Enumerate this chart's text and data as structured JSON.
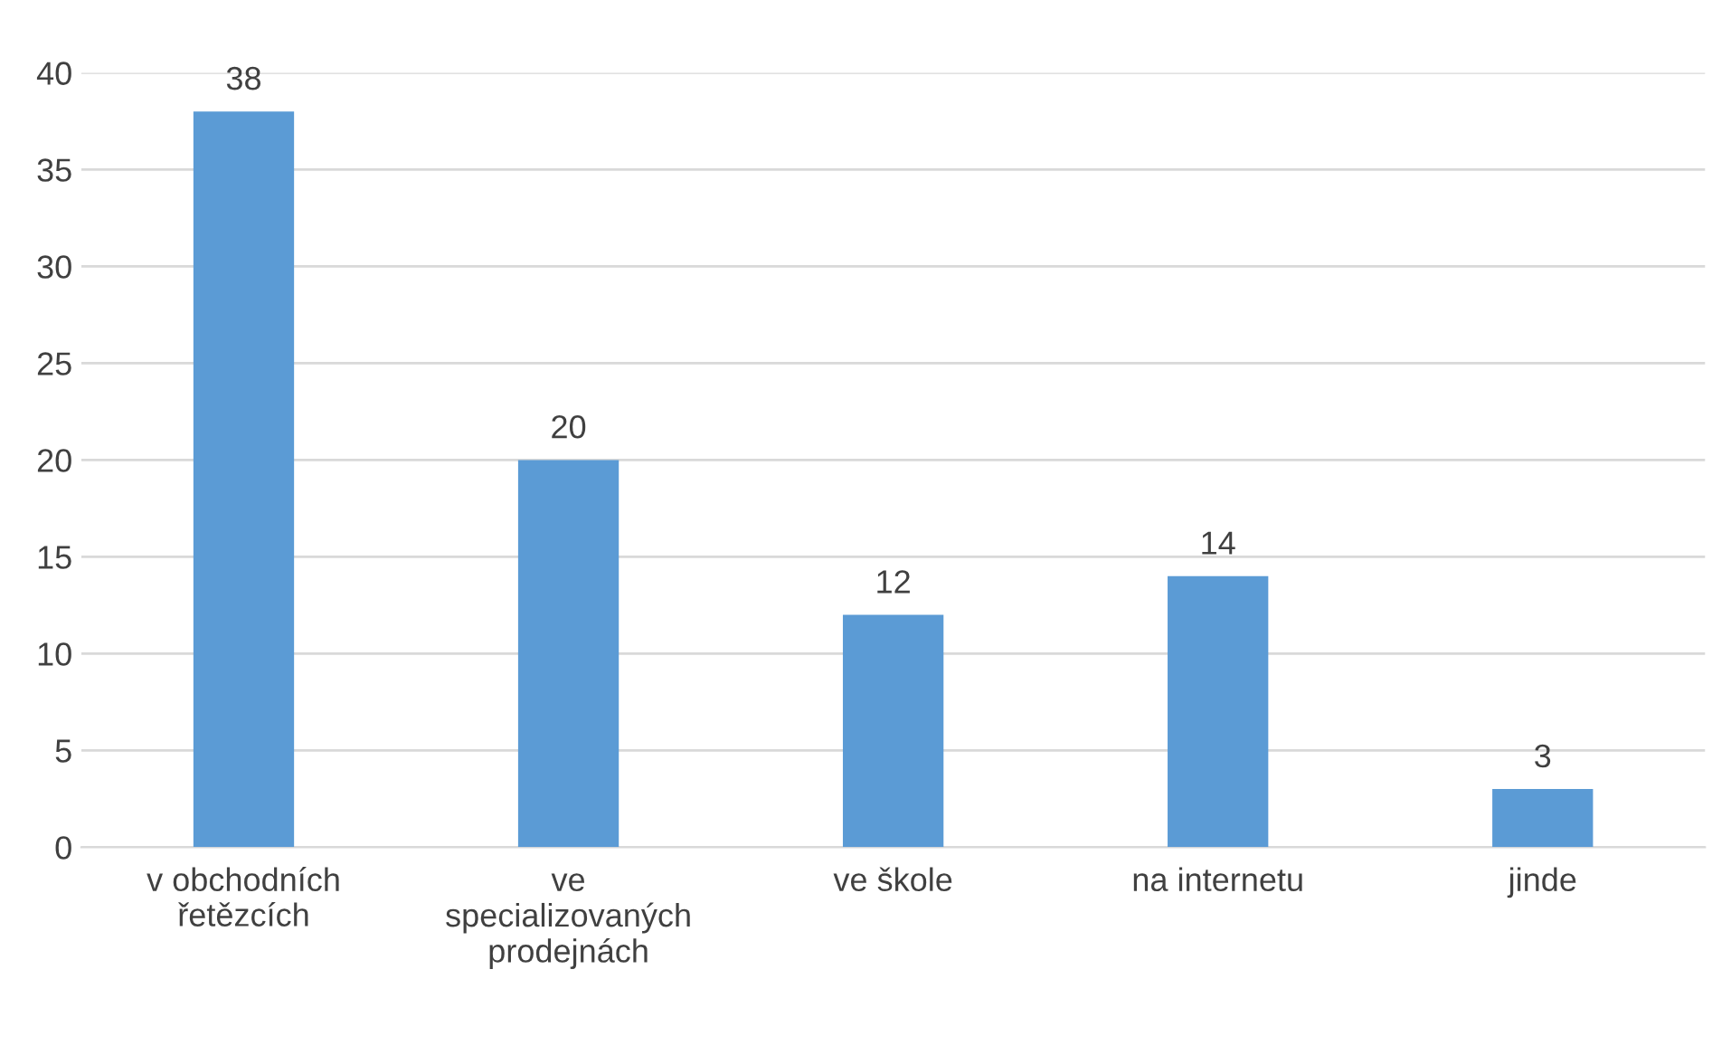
{
  "chart_data": {
    "type": "bar",
    "categories": [
      "v obchodních\nřetězcích",
      "ve\nspecializovaných\nprodejnách",
      "ve škole",
      "na internetu",
      "jinde"
    ],
    "values": [
      38,
      20,
      12,
      14,
      3
    ],
    "color": "#5b9bd5",
    "ylim": [
      0,
      40
    ],
    "yticks": [
      0,
      5,
      10,
      15,
      20,
      25,
      30,
      35,
      40
    ],
    "grid": "y",
    "data_labels": true
  }
}
